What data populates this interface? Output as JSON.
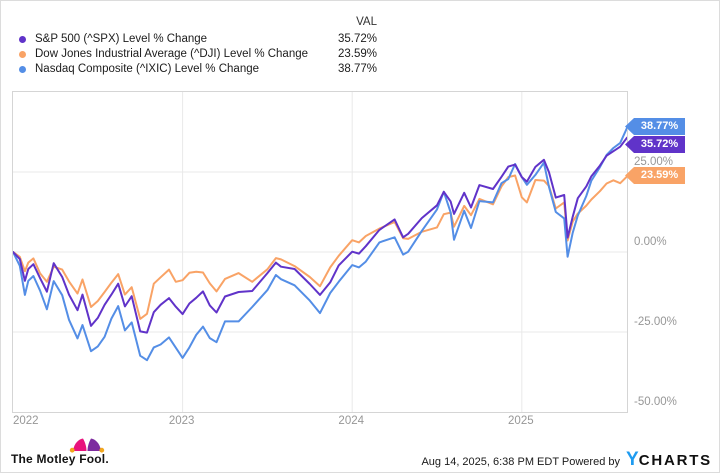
{
  "legend": {
    "val_header": "VAL",
    "series": [
      {
        "label": "S&P 500 (^SPX) Level % Change",
        "value": "35.72%",
        "color": "#6033c9"
      },
      {
        "label": "Dow Jones Industrial Average (^DJI) Level % Change",
        "value": "23.59%",
        "color": "#f9a366"
      },
      {
        "label": "Nasdaq Composite (^IXIC) Level % Change",
        "value": "38.77%",
        "color": "#548ee6"
      }
    ]
  },
  "chart_data": {
    "type": "line",
    "title": "",
    "xlabel": "",
    "ylabel": "Level % Change",
    "xlim": [
      2022,
      2025.62
    ],
    "ylim": [
      -50,
      50
    ],
    "grid": true,
    "legend_position": "top",
    "x_ticks": [
      {
        "label": "2022",
        "value": 2022
      },
      {
        "label": "2023",
        "value": 2023
      },
      {
        "label": "2024",
        "value": 2024
      },
      {
        "label": "2025",
        "value": 2025
      }
    ],
    "y_ticks": [
      {
        "label": "25.00%",
        "value": 25
      },
      {
        "label": "0.00%",
        "value": 0
      },
      {
        "label": "-25.00%",
        "value": -25
      },
      {
        "label": "-50.00%",
        "value": -50
      }
    ],
    "x": [
      2022.0,
      2022.04,
      2022.07,
      2022.09,
      2022.12,
      2022.16,
      2022.2,
      2022.24,
      2022.29,
      2022.33,
      2022.38,
      2022.41,
      2022.46,
      2022.5,
      2022.54,
      2022.58,
      2022.62,
      2022.66,
      2022.7,
      2022.75,
      2022.79,
      2022.83,
      2022.87,
      2022.92,
      2022.96,
      2023.0,
      2023.04,
      2023.08,
      2023.12,
      2023.16,
      2023.2,
      2023.25,
      2023.33,
      2023.41,
      2023.5,
      2023.55,
      2023.58,
      2023.66,
      2023.75,
      2023.81,
      2023.87,
      2023.92,
      2024.0,
      2024.04,
      2024.08,
      2024.16,
      2024.25,
      2024.3,
      2024.33,
      2024.41,
      2024.5,
      2024.54,
      2024.58,
      2024.6,
      2024.66,
      2024.7,
      2024.75,
      2024.83,
      2024.88,
      2024.92,
      2024.96,
      2025.0,
      2025.03,
      2025.08,
      2025.13,
      2025.16,
      2025.2,
      2025.25,
      2025.27,
      2025.3,
      2025.33,
      2025.38,
      2025.41,
      2025.46,
      2025.5,
      2025.54,
      2025.58,
      2025.62
    ],
    "series": [
      {
        "name": "S&P 500 (^SPX) Level % Change",
        "color": "#6033c9",
        "end_label": "35.72%",
        "end_value": 35.72,
        "values": [
          0,
          -2.2,
          -9,
          -5.3,
          -3.8,
          -8.2,
          -12.4,
          -3.5,
          -7.8,
          -13.3,
          -18.2,
          -13.3,
          -23.1,
          -20.6,
          -16.5,
          -13.3,
          -9.9,
          -17,
          -13.8,
          -24.8,
          -25.2,
          -18.8,
          -16.5,
          -14.4,
          -17.1,
          -19.4,
          -16.1,
          -14.3,
          -12.3,
          -16.7,
          -18.9,
          -13.9,
          -12.5,
          -12.2,
          -6.6,
          -3.3,
          -4.6,
          -5.3,
          -10,
          -13.4,
          -9.5,
          -4.2,
          0.1,
          -0.5,
          1.8,
          6.9,
          10.2,
          4.6,
          5.7,
          10.6,
          14.6,
          18.8,
          15.8,
          11.9,
          18.5,
          13.9,
          20.9,
          19.7,
          23.5,
          26.7,
          27.3,
          23.4,
          22,
          26.6,
          28.8,
          24.9,
          17,
          17.8,
          4.5,
          11,
          16.8,
          20.5,
          23.7,
          27,
          30.1,
          31.5,
          32.9,
          35.72
        ]
      },
      {
        "name": "Dow Jones Industrial Average (^DJI) Level % Change",
        "color": "#f9a366",
        "end_label": "23.59%",
        "end_value": 23.59,
        "values": [
          0,
          -1.5,
          -6,
          -3.3,
          -2,
          -6.7,
          -9.3,
          -4.6,
          -5.5,
          -9.2,
          -13,
          -8.6,
          -17.2,
          -15.3,
          -12.5,
          -9.6,
          -6.9,
          -13.3,
          -11,
          -20.9,
          -19.3,
          -9.9,
          -7.9,
          -5.5,
          -9.3,
          -8.8,
          -6.5,
          -6.2,
          -6.4,
          -9.8,
          -12.3,
          -8.4,
          -6.6,
          -9.3,
          -5.4,
          -1.9,
          -2.3,
          -4.4,
          -7.8,
          -10.7,
          -4.8,
          -1.2,
          3.7,
          3,
          5,
          7.3,
          9.4,
          4.3,
          4.1,
          6.3,
          7.7,
          11.8,
          12.3,
          7.9,
          14.4,
          11.5,
          16.6,
          14.9,
          20.5,
          23.4,
          23.9,
          17.1,
          15.5,
          22.5,
          22.3,
          20.6,
          13.6,
          15.5,
          3.6,
          9.5,
          12,
          14.5,
          16.4,
          19,
          21.4,
          22.4,
          21.5,
          23.59
        ]
      },
      {
        "name": "Nasdaq Composite (^IXIC) Level % Change",
        "color": "#548ee6",
        "end_label": "38.77%",
        "end_value": 38.77,
        "values": [
          0,
          -4.3,
          -13.4,
          -9,
          -7.5,
          -12.1,
          -17.9,
          -9.1,
          -13.5,
          -21.2,
          -27,
          -22.8,
          -31,
          -29.5,
          -26.5,
          -20.8,
          -16.9,
          -24.5,
          -22,
          -32.4,
          -33.8,
          -29.8,
          -28.9,
          -26.7,
          -29.9,
          -33.1,
          -29.8,
          -25.9,
          -23.3,
          -26.9,
          -28.2,
          -21.7,
          -21.7,
          -17.2,
          -11.9,
          -7.2,
          -8.5,
          -10.4,
          -15.2,
          -19.1,
          -12.8,
          -9.3,
          -4.1,
          -4.8,
          -3,
          3,
          4.6,
          -0.8,
          0.1,
          6.6,
          13.3,
          18.8,
          12.4,
          3.8,
          12.9,
          7.5,
          15.9,
          15.5,
          21.5,
          22.8,
          27.5,
          23.4,
          21,
          24.1,
          27.9,
          20.3,
          12.5,
          10.5,
          -1.5,
          6,
          11.4,
          17.5,
          22.3,
          26.5,
          30.3,
          32.5,
          34.1,
          38.77
        ]
      }
    ]
  },
  "footer": {
    "brand": "The Motley Fool.",
    "timestamp": "Aug 14, 2025, 6:38 PM EDT",
    "powered_by": "Powered by",
    "ycharts_y": "Y",
    "ycharts_rest": "CHARTS"
  },
  "colors": {
    "spx": "#6033c9",
    "dji": "#f9a366",
    "ixic": "#548ee6",
    "grid": "#e9e9e9",
    "plot_border": "#d5d5d5",
    "tick_text": "#979797",
    "ycharts_blue": "#1e9bf0",
    "fool_pink": "#e8137d",
    "fool_purple": "#7d2b9f",
    "fool_gold": "#f2a71e"
  }
}
